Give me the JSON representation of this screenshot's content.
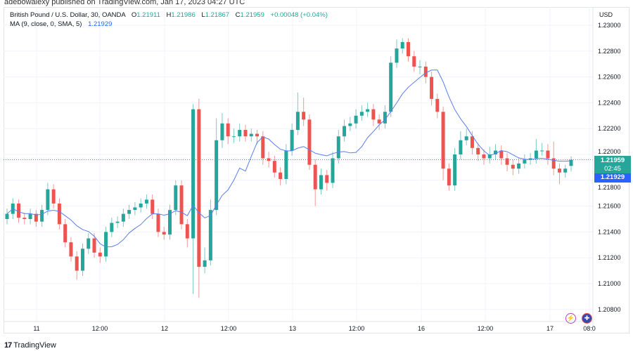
{
  "published": "adebowalexy published on TradingView.com, Jan 17, 2023 04:27 UTC",
  "legend": {
    "symbol": "British Pound / U.S. Dollar, 30, OANDA",
    "o_label": "O",
    "o": "1.21911",
    "h_label": "H",
    "h": "1.21986",
    "l_label": "L",
    "l": "1.21867",
    "c_label": "C",
    "c": "1.21959",
    "change": "+0.00048 (+0.04%)",
    "ma_label": "MA (9, close, 0, SMA, 5)",
    "ma_value": "1.21929"
  },
  "currency": "USD",
  "badges": {
    "price": "1.21959",
    "countdown": "02:45",
    "ma": "1.21929"
  },
  "icons": [
    "lightning-icon",
    "uk-flag-icon"
  ],
  "footer_logo": "TradingView",
  "colors": {
    "up": "#26a69a",
    "down": "#ef5350",
    "ma": "#5b7cf5",
    "grid": "#f0f3fa"
  },
  "chart_data": {
    "type": "candlestick",
    "ylim": [
      1.2072,
      1.2313
    ],
    "y_ticks": [
      "1.23000",
      "1.22800",
      "1.22600",
      "1.22400",
      "1.22200",
      "1.22000",
      "1.21800",
      "1.21600",
      "1.21400",
      "1.21200",
      "1.21000",
      "1.20800"
    ],
    "x_ticks": [
      "11",
      "12:00",
      "12",
      "12:00",
      "13",
      "12:00",
      "16",
      "12:00",
      "17",
      "08:0"
    ],
    "ma_period": 9,
    "last_price": 1.21959,
    "ohlc": [
      [
        1.215,
        1.2158,
        1.2146,
        1.2154
      ],
      [
        1.2154,
        1.2166,
        1.215,
        1.2162
      ],
      [
        1.2162,
        1.2165,
        1.2147,
        1.2151
      ],
      [
        1.2151,
        1.2155,
        1.2146,
        1.215
      ],
      [
        1.215,
        1.2158,
        1.2146,
        1.2154
      ],
      [
        1.2154,
        1.2157,
        1.2144,
        1.2148
      ],
      [
        1.2148,
        1.2161,
        1.2144,
        1.2157
      ],
      [
        1.2157,
        1.2178,
        1.2153,
        1.2173
      ],
      [
        1.2173,
        1.2177,
        1.2158,
        1.2162
      ],
      [
        1.2162,
        1.2166,
        1.2142,
        1.2146
      ],
      [
        1.2146,
        1.215,
        1.2128,
        1.2132
      ],
      [
        1.2132,
        1.2136,
        1.2117,
        1.2121
      ],
      [
        1.2121,
        1.2125,
        1.2103,
        1.211
      ],
      [
        1.211,
        1.2131,
        1.2106,
        1.2127
      ],
      [
        1.2127,
        1.2139,
        1.2123,
        1.2135
      ],
      [
        1.2135,
        1.2139,
        1.212,
        1.2124
      ],
      [
        1.2124,
        1.2128,
        1.2116,
        1.2121
      ],
      [
        1.2121,
        1.2144,
        1.2117,
        1.214
      ],
      [
        1.214,
        1.2151,
        1.2136,
        1.2147
      ],
      [
        1.2147,
        1.2152,
        1.2143,
        1.2148
      ],
      [
        1.2148,
        1.2158,
        1.2144,
        1.2154
      ],
      [
        1.2154,
        1.2161,
        1.215,
        1.2157
      ],
      [
        1.2157,
        1.2163,
        1.2153,
        1.2159
      ],
      [
        1.2159,
        1.2166,
        1.2155,
        1.2162
      ],
      [
        1.2162,
        1.2169,
        1.2158,
        1.2165
      ],
      [
        1.2165,
        1.2169,
        1.215,
        1.2154
      ],
      [
        1.2154,
        1.2158,
        1.2136,
        1.214
      ],
      [
        1.214,
        1.2144,
        1.2134,
        1.2138
      ],
      [
        1.2138,
        1.2161,
        1.2134,
        1.2157
      ],
      [
        1.2157,
        1.218,
        1.2153,
        1.2176
      ],
      [
        1.2176,
        1.218,
        1.2142,
        1.2146
      ],
      [
        1.2146,
        1.215,
        1.2128,
        1.2135
      ],
      [
        1.2135,
        1.2239,
        1.2092,
        1.2235
      ],
      [
        1.2235,
        1.2243,
        1.2089,
        1.2113
      ],
      [
        1.2113,
        1.2128,
        1.2108,
        1.2118
      ],
      [
        1.2118,
        1.2165,
        1.2114,
        1.2157
      ],
      [
        1.2157,
        1.2228,
        1.2153,
        1.2211
      ],
      [
        1.2211,
        1.2232,
        1.2205,
        1.2224
      ],
      [
        1.2224,
        1.2228,
        1.2208,
        1.2214
      ],
      [
        1.2214,
        1.222,
        1.2209,
        1.2214
      ],
      [
        1.2214,
        1.2224,
        1.221,
        1.2219
      ],
      [
        1.2219,
        1.2223,
        1.221,
        1.2214
      ],
      [
        1.2214,
        1.222,
        1.221,
        1.2216
      ],
      [
        1.2216,
        1.2219,
        1.2208,
        1.2214
      ],
      [
        1.2214,
        1.2218,
        1.2192,
        1.2197
      ],
      [
        1.2197,
        1.2202,
        1.219,
        1.2195
      ],
      [
        1.2195,
        1.2199,
        1.2182,
        1.2186
      ],
      [
        1.2186,
        1.219,
        1.2176,
        1.2181
      ],
      [
        1.2181,
        1.2208,
        1.2177,
        1.2203
      ],
      [
        1.2203,
        1.2224,
        1.2199,
        1.2219
      ],
      [
        1.2219,
        1.2248,
        1.2215,
        1.2233
      ],
      [
        1.2233,
        1.2244,
        1.2222,
        1.2227
      ],
      [
        1.2227,
        1.2231,
        1.2188,
        1.2192
      ],
      [
        1.2192,
        1.2196,
        1.216,
        1.2173
      ],
      [
        1.2173,
        1.2189,
        1.2169,
        1.2184
      ],
      [
        1.2184,
        1.2188,
        1.2172,
        1.2178
      ],
      [
        1.2178,
        1.2202,
        1.2174,
        1.2197
      ],
      [
        1.2197,
        1.2219,
        1.2193,
        1.2214
      ],
      [
        1.2214,
        1.2227,
        1.221,
        1.2222
      ],
      [
        1.2222,
        1.2229,
        1.2218,
        1.2224
      ],
      [
        1.2224,
        1.2235,
        1.222,
        1.223
      ],
      [
        1.223,
        1.2238,
        1.2226,
        1.2233
      ],
      [
        1.2233,
        1.224,
        1.2229,
        1.2235
      ],
      [
        1.2235,
        1.2239,
        1.2222,
        1.2227
      ],
      [
        1.2227,
        1.2231,
        1.2219,
        1.2224
      ],
      [
        1.2224,
        1.2238,
        1.222,
        1.2233
      ],
      [
        1.2233,
        1.2276,
        1.2229,
        1.2271
      ],
      [
        1.2271,
        1.2289,
        1.2267,
        1.2282
      ],
      [
        1.2282,
        1.229,
        1.2278,
        1.2287
      ],
      [
        1.2287,
        1.229,
        1.2272,
        1.2276
      ],
      [
        1.2276,
        1.228,
        1.2264,
        1.2268
      ],
      [
        1.2268,
        1.2273,
        1.2262,
        1.2268
      ],
      [
        1.2268,
        1.2272,
        1.2255,
        1.226
      ],
      [
        1.226,
        1.2264,
        1.2238,
        1.2243
      ],
      [
        1.2243,
        1.2247,
        1.2228,
        1.2233
      ],
      [
        1.2233,
        1.2237,
        1.218,
        1.2189
      ],
      [
        1.2189,
        1.2193,
        1.2172,
        1.2176
      ],
      [
        1.2176,
        1.2205,
        1.2172,
        1.22
      ],
      [
        1.22,
        1.2218,
        1.2196,
        1.2211
      ],
      [
        1.2211,
        1.222,
        1.2207,
        1.2214
      ],
      [
        1.2214,
        1.2218,
        1.22,
        1.2205
      ],
      [
        1.2205,
        1.2209,
        1.2195,
        1.22
      ],
      [
        1.22,
        1.2204,
        1.2192,
        1.2197
      ],
      [
        1.2197,
        1.2206,
        1.2193,
        1.22
      ],
      [
        1.22,
        1.2208,
        1.2196,
        1.2203
      ],
      [
        1.2203,
        1.2207,
        1.2192,
        1.2197
      ],
      [
        1.2197,
        1.2201,
        1.2187,
        1.2192
      ],
      [
        1.2192,
        1.2196,
        1.2184,
        1.2189
      ],
      [
        1.2189,
        1.2197,
        1.2185,
        1.2193
      ],
      [
        1.2193,
        1.22,
        1.2189,
        1.2196
      ],
      [
        1.2196,
        1.2201,
        1.2192,
        1.2197
      ],
      [
        1.2197,
        1.2212,
        1.2193,
        1.2203
      ],
      [
        1.2203,
        1.2209,
        1.2199,
        1.2203
      ],
      [
        1.2203,
        1.2208,
        1.2192,
        1.2197
      ],
      [
        1.2197,
        1.221,
        1.2184,
        1.2189
      ],
      [
        1.2189,
        1.2193,
        1.2177,
        1.2186
      ],
      [
        1.2186,
        1.2192,
        1.2182,
        1.2189
      ],
      [
        1.21911,
        1.21986,
        1.21867,
        1.21959
      ]
    ]
  }
}
